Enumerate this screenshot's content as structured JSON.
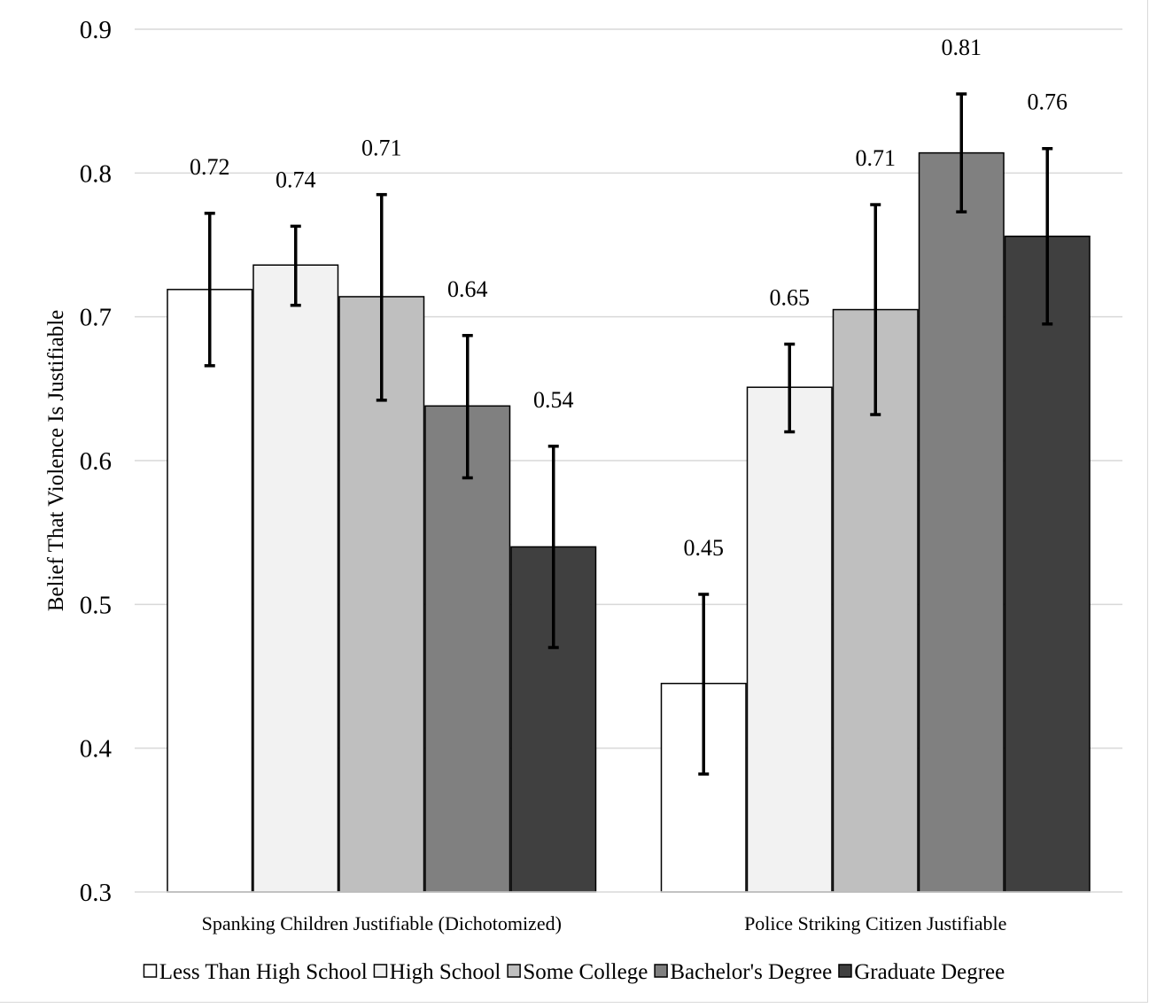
{
  "chart_data": {
    "type": "bar",
    "title": "",
    "xlabel": "",
    "ylabel": "Belief That Violence Is Justifiable",
    "ylim": [
      0.3,
      0.9
    ],
    "yticks": [
      "0.3",
      "0.4",
      "0.5",
      "0.6",
      "0.7",
      "0.8",
      "0.9"
    ],
    "grid": true,
    "legend_position": "bottom",
    "categories": [
      "Spanking Children Justifiable (Dichotomized)",
      "Police Striking Citizen Justifiable"
    ],
    "series": [
      {
        "name": "Less Than High School",
        "color": "#ffffff",
        "values": [
          0.719,
          0.445
        ],
        "labels": [
          "0.72",
          "0.45"
        ],
        "error_low": [
          0.666,
          0.382
        ],
        "error_high": [
          0.772,
          0.507
        ]
      },
      {
        "name": "High School",
        "color": "#f2f2f2",
        "values": [
          0.736,
          0.651
        ],
        "labels": [
          "0.74",
          "0.65"
        ],
        "error_low": [
          0.708,
          0.62
        ],
        "error_high": [
          0.763,
          0.681
        ]
      },
      {
        "name": "Some College",
        "color": "#bfbfbf",
        "values": [
          0.714,
          0.705
        ],
        "labels": [
          "0.71",
          "0.71"
        ],
        "error_low": [
          0.642,
          0.632
        ],
        "error_high": [
          0.785,
          0.778
        ]
      },
      {
        "name": "Bachelor's Degree",
        "color": "#808080",
        "values": [
          0.638,
          0.814
        ],
        "labels": [
          "0.64",
          "0.81"
        ],
        "error_low": [
          0.588,
          0.773
        ],
        "error_high": [
          0.687,
          0.855
        ]
      },
      {
        "name": "Graduate Degree",
        "color": "#404040",
        "values": [
          0.54,
          0.756
        ],
        "labels": [
          "0.54",
          "0.76"
        ],
        "error_low": [
          0.47,
          0.695
        ],
        "error_high": [
          0.61,
          0.817
        ]
      }
    ]
  }
}
